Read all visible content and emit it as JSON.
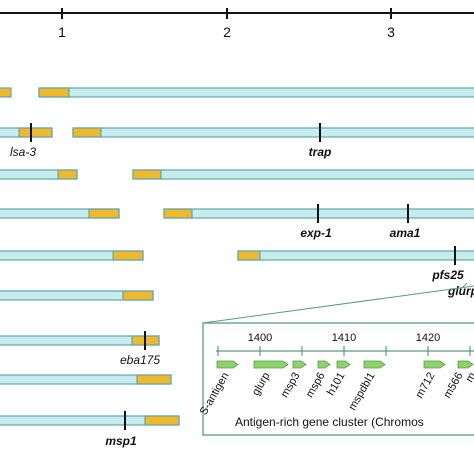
{
  "scale": {
    "ticks": [
      "1",
      "2",
      "3"
    ]
  },
  "gene_labels": {
    "lsa3": "lsa-3",
    "trap": "trap",
    "exp1": "exp-1",
    "ama1": "ama1",
    "pfs25": "pfs25",
    "glurp": "glurp",
    "eba175": "eba175",
    "msp1": "msp1"
  },
  "inset": {
    "positions": [
      "1400",
      "1410",
      "1420"
    ],
    "genes": [
      "S-antigen",
      "glurp",
      "msp3",
      "msp6",
      "h101",
      "mspdbl1",
      "m712",
      "m566",
      "m"
    ],
    "caption": "Antigen-rich gene cluster (Chromos"
  },
  "colors": {
    "chromosome_fill": "#c8ecec",
    "chromosome_stroke": "#5aa8b4",
    "telomere": "#f0b82a",
    "gene_arrow": "#8fd16a",
    "inset_border": "#5a9a8a",
    "text": "#111111"
  }
}
